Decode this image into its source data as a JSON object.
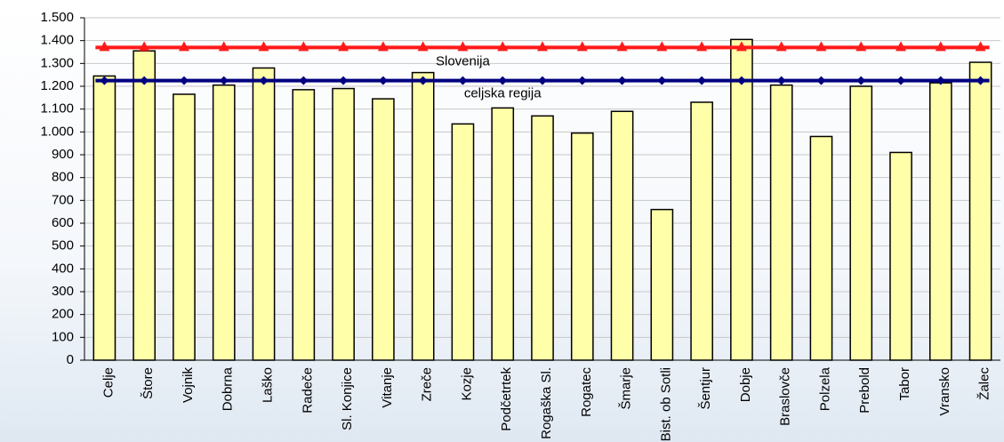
{
  "chart_data": {
    "type": "bar",
    "categories": [
      "Celje",
      "Štore",
      "Vojnik",
      "Dobrna",
      "Laško",
      "Radeče",
      "Sl. Konjice",
      "Vitanje",
      "Zreče",
      "Kozje",
      "Podčetrtek",
      "Rogaška Sl.",
      "Rogatec",
      "Šmarje",
      "Bist. ob Sotli",
      "Šentjur",
      "Dobje",
      "Braslovče",
      "Polzela",
      "Prebold",
      "Tabor",
      "Vransko",
      "Žalec"
    ],
    "values": [
      1245,
      1355,
      1165,
      1205,
      1280,
      1185,
      1190,
      1145,
      1260,
      1035,
      1105,
      1070,
      995,
      1090,
      660,
      1130,
      1405,
      1205,
      980,
      1200,
      910,
      1215,
      1305
    ],
    "color": "#ffffaa",
    "series": [
      {
        "name": "Slovenija",
        "color": "#ff1a1a",
        "marker": "triangle",
        "values": [
          1370,
          1370,
          1370,
          1370,
          1370,
          1370,
          1370,
          1370,
          1370,
          1370,
          1370,
          1370,
          1370,
          1370,
          1370,
          1370,
          1370,
          1370,
          1370,
          1370,
          1370,
          1370,
          1370
        ]
      },
      {
        "name": "celjska regija",
        "color": "#000080",
        "marker": "diamond",
        "values": [
          1225,
          1225,
          1225,
          1225,
          1225,
          1225,
          1225,
          1225,
          1225,
          1225,
          1225,
          1225,
          1225,
          1225,
          1225,
          1225,
          1225,
          1225,
          1225,
          1225,
          1225,
          1225,
          1225
        ]
      }
    ],
    "ylim": [
      0,
      1500
    ],
    "yticks": [
      0,
      100,
      200,
      300,
      400,
      500,
      600,
      700,
      800,
      900,
      {
        "value": 1000,
        "label": "1.000"
      },
      {
        "value": 1100,
        "label": "1.100"
      },
      {
        "value": 1200,
        "label": "1.200"
      },
      {
        "value": 1300,
        "label": "1.300"
      },
      {
        "value": 1400,
        "label": "1.400"
      },
      {
        "value": 1500,
        "label": "1.500"
      }
    ],
    "grid": true
  }
}
